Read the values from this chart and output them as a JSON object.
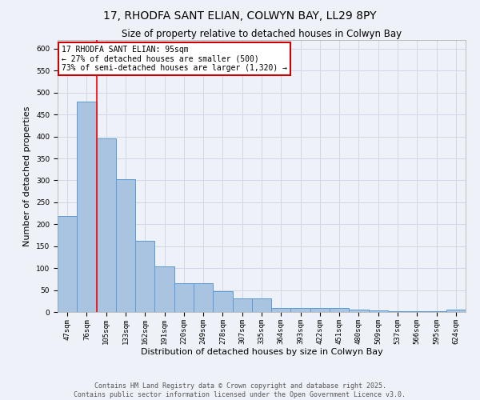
{
  "title1": "17, RHODFA SANT ELIAN, COLWYN BAY, LL29 8PY",
  "title2": "Size of property relative to detached houses in Colwyn Bay",
  "xlabel": "Distribution of detached houses by size in Colwyn Bay",
  "ylabel": "Number of detached properties",
  "categories": [
    "47sqm",
    "76sqm",
    "105sqm",
    "133sqm",
    "162sqm",
    "191sqm",
    "220sqm",
    "249sqm",
    "278sqm",
    "307sqm",
    "335sqm",
    "364sqm",
    "393sqm",
    "422sqm",
    "451sqm",
    "480sqm",
    "509sqm",
    "537sqm",
    "566sqm",
    "595sqm",
    "624sqm"
  ],
  "values": [
    218,
    479,
    395,
    302,
    163,
    104,
    65,
    65,
    47,
    31,
    31,
    10,
    10,
    10,
    9,
    5,
    4,
    2,
    2,
    2,
    5
  ],
  "bar_color": "#a8c4e0",
  "bar_edge_color": "#5b9bd5",
  "grid_color": "#d0d8e8",
  "background_color": "#eef2f8",
  "red_line_x": 1.5,
  "annotation_text": "17 RHODFA SANT ELIAN: 95sqm\n← 27% of detached houses are smaller (500)\n73% of semi-detached houses are larger (1,320) →",
  "annotation_box_color": "#ffffff",
  "annotation_border_color": "#cc0000",
  "ylim": [
    0,
    620
  ],
  "yticks": [
    0,
    50,
    100,
    150,
    200,
    250,
    300,
    350,
    400,
    450,
    500,
    550,
    600
  ],
  "footer": "Contains HM Land Registry data © Crown copyright and database right 2025.\nContains public sector information licensed under the Open Government Licence v3.0.",
  "title_fontsize": 10,
  "subtitle_fontsize": 8.5,
  "xlabel_fontsize": 8,
  "ylabel_fontsize": 8,
  "tick_fontsize": 6.5,
  "annotation_fontsize": 7,
  "footer_fontsize": 6
}
